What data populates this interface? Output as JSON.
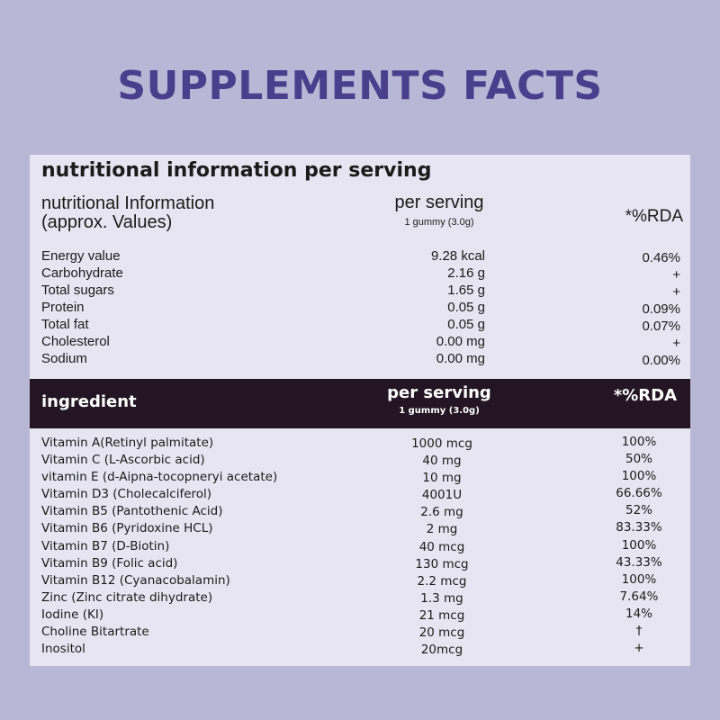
{
  "title": "SUPPLEMENTS FACTS",
  "nutrition": {
    "heading": "nutritional information per serving",
    "col_label_line1": "nutritional Information",
    "col_label_line2": "(approx. Values)",
    "per_serving": "per serving",
    "serving_size": "1 gummy (3.0g)",
    "rda_header": "*%RDA",
    "rows": [
      {
        "name": "Energy value",
        "value": "9.28 kcal",
        "rda": "0.46%"
      },
      {
        "name": "Carbohydrate",
        "value": "2.16 g",
        "rda": "+"
      },
      {
        "name": "Total sugars",
        "value": "1.65 g",
        "rda": "+"
      },
      {
        "name": "Protein",
        "value": "0.05 g",
        "rda": "0.09%"
      },
      {
        "name": "Total fat",
        "value": "0.05 g",
        "rda": "0.07%"
      },
      {
        "name": "Cholesterol",
        "value": "0.00 mg",
        "rda": "+"
      },
      {
        "name": "Sodium",
        "value": "0.00 mg",
        "rda": "0.00%"
      }
    ]
  },
  "ingredients": {
    "header_label": "ingredient",
    "per_serving": "per serving",
    "serving_size": "1 gummy (3.0g)",
    "rda_header": "*%RDA",
    "rows": [
      {
        "name": "Vitamin A(Retinyl palmitate)",
        "value": "1000 mcg",
        "rda": "100%"
      },
      {
        "name": "Vitamin C (L-Ascorbic acid)",
        "value": "40 mg",
        "rda": "50%"
      },
      {
        "name": "vitamin E (d-Aipna-tocopneryi acetate)",
        "value": "10 mg",
        "rda": "100%"
      },
      {
        "name": "Vitamin D3 (Cholecalciferol)",
        "value": "4001U",
        "rda": "66.66%"
      },
      {
        "name": "Vitamin B5 (Pantothenic Acid)",
        "value": "2.6 mg",
        "rda": "52%"
      },
      {
        "name": "Vitamin B6 (Pyridoxine HCL)",
        "value": "2 mg",
        "rda": "83.33%"
      },
      {
        "name": "Vitamin B7 (D-Biotin)",
        "value": "40 mcg",
        "rda": "100%"
      },
      {
        "name": "Vitamin B9 (Folic acid)",
        "value": "130 mcg",
        "rda": "43.33%"
      },
      {
        "name": "Vitamin B12 (Cyanacobalamin)",
        "value": "2.2 mcg",
        "rda": "100%"
      },
      {
        "name": "Zinc (Zinc citrate dihydrate)",
        "value": "1.3 mg",
        "rda": "7.64%"
      },
      {
        "name": "Iodine (KI)",
        "value": "21 mcg",
        "rda": "14%"
      },
      {
        "name": "Choline Bitartrate",
        "value": "20 mcg",
        "rda": "†"
      },
      {
        "name": "Inositol",
        "value": "20mcg",
        "rda": "+"
      }
    ]
  },
  "colors": {
    "background": "#b9b7d6",
    "title": "#4a3f8c",
    "panel": "#e6e5f1",
    "header_bar": "#231523"
  }
}
